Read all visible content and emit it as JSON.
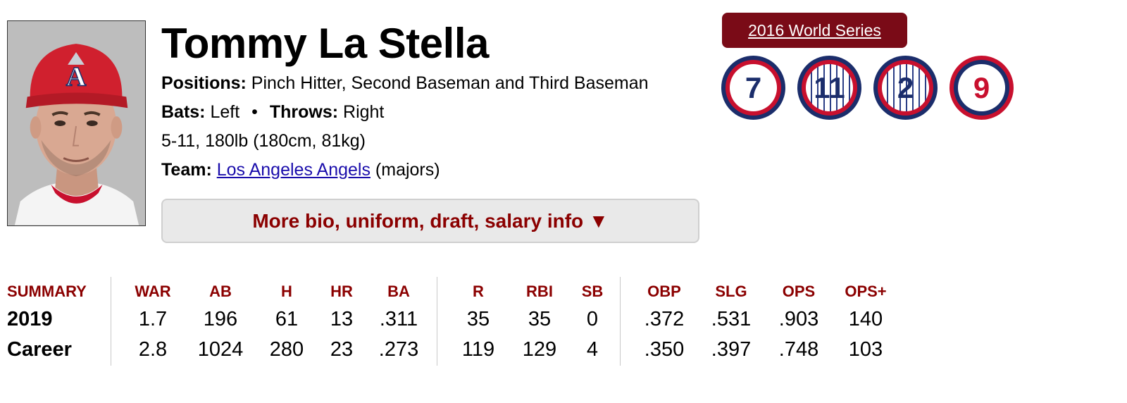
{
  "player": {
    "name": "Tommy La Stella",
    "positions_label": "Positions:",
    "positions": "Pinch Hitter, Second Baseman and Third Baseman",
    "bats_label": "Bats:",
    "bats": "Left",
    "separator": "•",
    "throws_label": "Throws:",
    "throws": "Right",
    "size": "5-11, 180lb (180cm, 81kg)",
    "team_label": "Team:",
    "team": "Los Angeles Angels",
    "team_level": "(majors)"
  },
  "more_bio_button": "More bio, uniform, draft, salary info ▼",
  "world_series_badge": "2016 World Series",
  "uniform_numbers": [
    "7",
    "11",
    "2",
    "9"
  ],
  "colors": {
    "accent_red": "#8b0000",
    "badge_maroon": "#7a0b17",
    "navy": "#1b2d6b",
    "red": "#c8102e",
    "link": "#1a0dab"
  },
  "stats": {
    "headers": [
      "SUMMARY",
      "WAR",
      "AB",
      "H",
      "HR",
      "BA",
      "R",
      "RBI",
      "SB",
      "OBP",
      "SLG",
      "OPS",
      "OPS+"
    ],
    "rows": [
      {
        "label": "2019",
        "values": [
          "1.7",
          "196",
          "61",
          "13",
          ".311",
          "35",
          "35",
          "0",
          ".372",
          ".531",
          ".903",
          "140"
        ]
      },
      {
        "label": "Career",
        "values": [
          "2.8",
          "1024",
          "280",
          "23",
          ".273",
          "119",
          "129",
          "4",
          ".350",
          ".397",
          ".748",
          "103"
        ]
      }
    ]
  }
}
